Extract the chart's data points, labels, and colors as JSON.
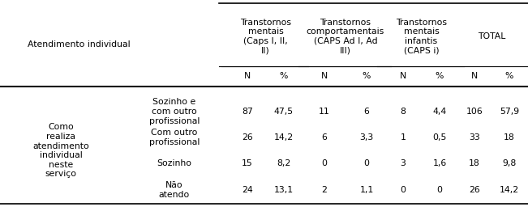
{
  "col_headers": [
    "Transtornos\nmentais\n(Caps I, II,\nII)",
    "Transtornos\ncomportamentais\n(CAPS Ad I, Ad\nIII)",
    "Transtornos\nmentais\ninfantis\n(CAPS i)",
    "TOTAL"
  ],
  "col_subheaders": [
    "N",
    "%",
    "N",
    "%",
    "N",
    "%",
    "N",
    "%"
  ],
  "row_label_main": "Como\nrealiza\natendimento\nindividual\nneste\nserviço",
  "row_labels_sub": [
    "Sozinho e\ncom outro\nprofissional",
    "Com outro\nprofissional",
    "Sozinho",
    "Não\natendo"
  ],
  "data": [
    [
      "87",
      "47,5",
      "11",
      "6",
      "8",
      "4,4",
      "106",
      "57,9"
    ],
    [
      "26",
      "14,2",
      "6",
      "3,3",
      "1",
      "0,5",
      "33",
      "18"
    ],
    [
      "15",
      "8,2",
      "0",
      "0",
      "3",
      "1,6",
      "18",
      "9,8"
    ],
    [
      "24",
      "13,1",
      "2",
      "1,1",
      "0",
      "0",
      "26",
      "14,2"
    ]
  ],
  "top_label": "Atendimento individual",
  "bg_color": "#ffffff",
  "text_color": "#000000",
  "font_size": 7.8
}
